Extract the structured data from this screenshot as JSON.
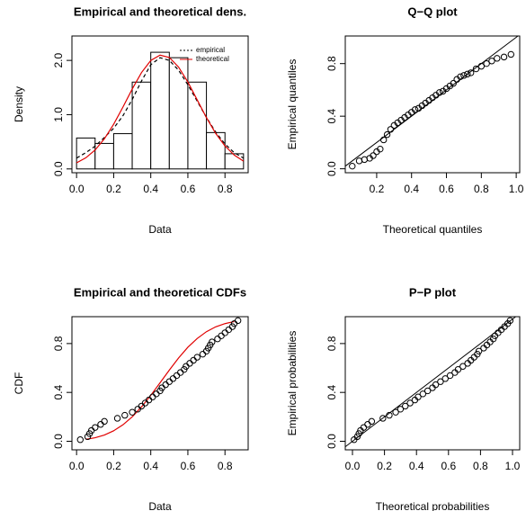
{
  "chart_data": [
    {
      "type": "histogram",
      "title": "Empirical and theoretical dens.",
      "xlabel": "Data",
      "ylabel": "Density",
      "bins": [
        0,
        0.1,
        0.2,
        0.3,
        0.4,
        0.5,
        0.6,
        0.7,
        0.8,
        0.9
      ],
      "values": [
        0.57,
        0.47,
        0.65,
        1.6,
        2.15,
        2.05,
        1.6,
        0.67,
        0.28
      ],
      "series": [
        {
          "name": "empirical",
          "color": "#000000",
          "dash": true,
          "x": [
            0,
            0.05,
            0.1,
            0.15,
            0.2,
            0.25,
            0.3,
            0.35,
            0.4,
            0.45,
            0.5,
            0.55,
            0.6,
            0.65,
            0.7,
            0.75,
            0.8,
            0.85,
            0.9
          ],
          "values": [
            0.2,
            0.3,
            0.42,
            0.58,
            0.75,
            0.98,
            1.28,
            1.62,
            1.92,
            2.05,
            2.0,
            1.82,
            1.55,
            1.25,
            0.95,
            0.68,
            0.46,
            0.3,
            0.2
          ]
        },
        {
          "name": "theoretical",
          "color": "#e00000",
          "dash": false,
          "x": [
            0,
            0.05,
            0.1,
            0.15,
            0.2,
            0.25,
            0.3,
            0.35,
            0.4,
            0.45,
            0.5,
            0.55,
            0.6,
            0.65,
            0.7,
            0.75,
            0.8,
            0.85,
            0.9
          ],
          "values": [
            0.112,
            0.205,
            0.349,
            0.555,
            0.824,
            1.14,
            1.473,
            1.776,
            1.998,
            2.097,
            2.054,
            1.877,
            1.601,
            1.274,
            0.946,
            0.655,
            0.424,
            0.255,
            0.144
          ]
        }
      ],
      "xlim": [
        -0.025,
        0.925
      ],
      "ylim": [
        -0.07,
        2.45
      ],
      "xticks": [
        {
          "value": 0,
          "label": "0.0"
        },
        0.2,
        0.4,
        0.6,
        0.8
      ],
      "yticks": [
        {
          "value": 0,
          "label": "0.0"
        },
        {
          "value": 1,
          "label": "1.0"
        },
        {
          "value": 2,
          "label": "2.0"
        }
      ]
    },
    {
      "type": "scatter",
      "title": "Q−Q plot",
      "xlabel": "Theoretical quantiles",
      "ylabel": "Empirical quantiles",
      "diagonal": true,
      "x": [
        0.06,
        0.1,
        0.13,
        0.16,
        0.18,
        0.2,
        0.22,
        0.24,
        0.26,
        0.28,
        0.3,
        0.32,
        0.34,
        0.36,
        0.38,
        0.4,
        0.42,
        0.44,
        0.46,
        0.48,
        0.5,
        0.52,
        0.54,
        0.56,
        0.58,
        0.6,
        0.62,
        0.64,
        0.66,
        0.68,
        0.7,
        0.72,
        0.74,
        0.77,
        0.8,
        0.83,
        0.86,
        0.89,
        0.93,
        0.97
      ],
      "values": [
        0.02,
        0.06,
        0.07,
        0.08,
        0.1,
        0.13,
        0.15,
        0.22,
        0.26,
        0.3,
        0.33,
        0.35,
        0.37,
        0.39,
        0.41,
        0.43,
        0.45,
        0.46,
        0.48,
        0.5,
        0.52,
        0.54,
        0.56,
        0.58,
        0.59,
        0.61,
        0.63,
        0.65,
        0.68,
        0.7,
        0.71,
        0.72,
        0.73,
        0.76,
        0.78,
        0.8,
        0.82,
        0.84,
        0.85,
        0.87
      ],
      "xlim": [
        0.02,
        1.02
      ],
      "ylim": [
        -0.03,
        1.01
      ],
      "xticks": [
        0.2,
        0.4,
        0.6,
        0.8,
        {
          "value": 1,
          "label": "1.0"
        }
      ],
      "yticks": [
        {
          "value": 0,
          "label": "0.0"
        },
        0.4,
        0.8
      ]
    },
    {
      "type": "scatter",
      "title": "Empirical and theoretical CDFs",
      "xlabel": "Data",
      "ylabel": "CDF",
      "diagonal": false,
      "x": [
        0.02,
        0.06,
        0.07,
        0.08,
        0.1,
        0.13,
        0.15,
        0.22,
        0.26,
        0.3,
        0.33,
        0.35,
        0.37,
        0.39,
        0.41,
        0.43,
        0.45,
        0.46,
        0.48,
        0.5,
        0.52,
        0.54,
        0.56,
        0.58,
        0.59,
        0.61,
        0.63,
        0.65,
        0.68,
        0.7,
        0.71,
        0.72,
        0.73,
        0.76,
        0.78,
        0.8,
        0.82,
        0.84,
        0.85,
        0.87
      ],
      "values": [
        0.013,
        0.038,
        0.063,
        0.088,
        0.113,
        0.138,
        0.163,
        0.188,
        0.213,
        0.238,
        0.263,
        0.288,
        0.313,
        0.338,
        0.363,
        0.388,
        0.413,
        0.438,
        0.463,
        0.488,
        0.513,
        0.538,
        0.563,
        0.588,
        0.613,
        0.638,
        0.663,
        0.688,
        0.713,
        0.738,
        0.763,
        0.788,
        0.813,
        0.838,
        0.863,
        0.888,
        0.913,
        0.938,
        0.963,
        0.988
      ],
      "curve": {
        "color": "#e00000",
        "x": [
          0.05,
          0.1,
          0.15,
          0.2,
          0.25,
          0.3,
          0.35,
          0.4,
          0.45,
          0.5,
          0.55,
          0.6,
          0.65,
          0.7,
          0.75,
          0.8,
          0.85
        ],
        "values": [
          0.0155,
          0.029,
          0.051,
          0.086,
          0.135,
          0.2,
          0.281,
          0.376,
          0.479,
          0.583,
          0.682,
          0.77,
          0.841,
          0.897,
          0.937,
          0.963,
          0.98
        ]
      },
      "xlim": [
        -0.025,
        0.925
      ],
      "ylim": [
        -0.07,
        1.02
      ],
      "xticks": [
        {
          "value": 0,
          "label": "0.0"
        },
        0.2,
        0.4,
        0.6,
        0.8
      ],
      "yticks": [
        {
          "value": 0,
          "label": "0.0"
        },
        0.4,
        0.8
      ]
    },
    {
      "type": "scatter",
      "title": "P−P plot",
      "xlabel": "Theoretical probabilities",
      "ylabel": "Empirical probabilities",
      "diagonal": true,
      "x": [
        0.01,
        0.03,
        0.04,
        0.05,
        0.07,
        0.095,
        0.12,
        0.19,
        0.23,
        0.27,
        0.3,
        0.33,
        0.36,
        0.39,
        0.41,
        0.44,
        0.47,
        0.5,
        0.52,
        0.55,
        0.58,
        0.61,
        0.64,
        0.66,
        0.69,
        0.72,
        0.74,
        0.76,
        0.78,
        0.79,
        0.82,
        0.84,
        0.86,
        0.88,
        0.89,
        0.91,
        0.93,
        0.95,
        0.97,
        0.985
      ],
      "values": [
        0.013,
        0.038,
        0.063,
        0.088,
        0.113,
        0.138,
        0.163,
        0.188,
        0.213,
        0.238,
        0.263,
        0.288,
        0.313,
        0.338,
        0.363,
        0.388,
        0.413,
        0.438,
        0.463,
        0.488,
        0.513,
        0.538,
        0.563,
        0.588,
        0.613,
        0.638,
        0.663,
        0.688,
        0.713,
        0.738,
        0.763,
        0.788,
        0.813,
        0.838,
        0.863,
        0.888,
        0.913,
        0.938,
        0.963,
        0.988
      ],
      "xlim": [
        -0.045,
        1.045
      ],
      "ylim": [
        -0.07,
        1.02
      ],
      "xticks": [
        {
          "value": 0,
          "label": "0.0"
        },
        0.2,
        0.4,
        0.6,
        0.8,
        {
          "value": 1,
          "label": "1.0"
        }
      ],
      "yticks": [
        {
          "value": 0,
          "label": "0.0"
        },
        0.4,
        0.8
      ]
    }
  ]
}
